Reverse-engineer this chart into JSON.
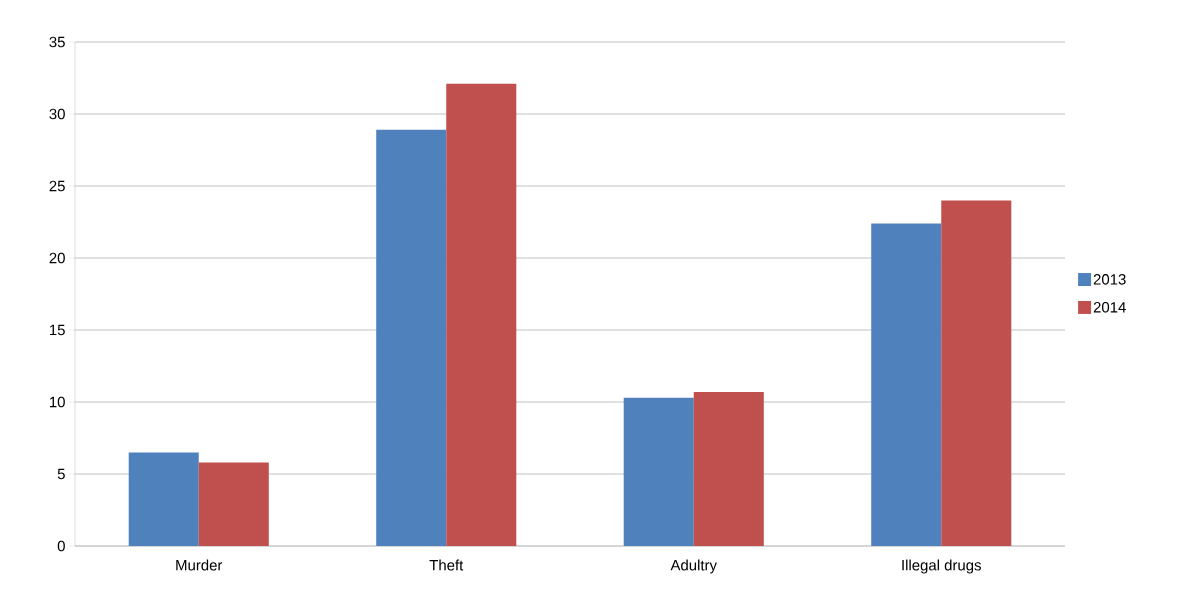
{
  "chart_data": {
    "type": "bar",
    "categories": [
      "Murder",
      "Theft",
      "Adultry",
      "Illegal drugs"
    ],
    "series": [
      {
        "name": "2013",
        "color": "#4f81bd",
        "values": [
          6.5,
          28.9,
          10.3,
          22.4
        ]
      },
      {
        "name": "2014",
        "color": "#c0504d",
        "values": [
          5.8,
          32.1,
          10.7,
          24.0
        ]
      }
    ],
    "ylim": [
      0,
      35
    ],
    "yticks": [
      0,
      5,
      10,
      15,
      20,
      25,
      30,
      35
    ],
    "grid": "y",
    "legend": "right"
  }
}
